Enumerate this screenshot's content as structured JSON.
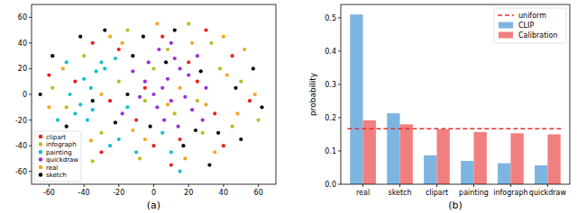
{
  "chart_data": [
    {
      "type": "scatter",
      "title": "(a)",
      "xlim": [
        -70,
        70
      ],
      "ylim": [
        -70,
        70
      ],
      "xticks": [
        -60,
        -40,
        -20,
        0,
        20,
        40,
        60
      ],
      "yticks": [
        -60,
        -40,
        -20,
        0,
        20,
        40,
        60
      ],
      "legend": "lower left",
      "marker": "circle",
      "series": [
        {
          "name": "clipart",
          "color": "#e8231f",
          "x": [
            -55,
            -45,
            -30,
            -20,
            -10,
            5,
            15,
            25,
            35,
            45,
            55,
            -35,
            -5,
            10,
            30,
            -60,
            40,
            20,
            -25,
            0
          ],
          "values": [
            -30,
            10,
            -45,
            35,
            -20,
            45,
            -35,
            10,
            -15,
            30,
            -5,
            40,
            5,
            -55,
            50,
            15,
            -40,
            25,
            -5,
            -40
          ]
        },
        {
          "name": "infograph",
          "color": "#bcbd22",
          "x": [
            -50,
            -40,
            -15,
            0,
            12,
            28,
            38,
            50,
            -30,
            -8,
            20,
            60,
            -20,
            8,
            45,
            -35,
            25,
            -5,
            33,
            -58
          ],
          "values": [
            -10,
            30,
            50,
            20,
            -15,
            -30,
            20,
            10,
            -30,
            -50,
            55,
            -20,
            10,
            35,
            -25,
            -52,
            -5,
            -5,
            40,
            5
          ]
        },
        {
          "name": "painting",
          "color": "#17becf",
          "x": [
            -45,
            -42,
            -38,
            -35,
            -30,
            -28,
            -33,
            -25,
            -20,
            -50,
            -15,
            -10,
            10,
            5,
            -48,
            -36,
            -22,
            -40,
            15,
            -55
          ],
          "values": [
            -15,
            -8,
            -20,
            -12,
            25,
            20,
            18,
            -40,
            -35,
            25,
            -10,
            -45,
            -45,
            -30,
            0,
            5,
            28,
            12,
            -60,
            -20
          ]
        },
        {
          "name": "quickdraw",
          "color": "#9b30d9",
          "x": [
            0,
            5,
            10,
            -5,
            8,
            15,
            20,
            12,
            -3,
            2,
            18,
            25,
            -8,
            6,
            22,
            30,
            -12,
            3,
            14,
            -18,
            28,
            10
          ],
          "values": [
            0,
            5,
            -5,
            10,
            12,
            20,
            15,
            28,
            25,
            -10,
            -2,
            30,
            -2,
            -20,
            -12,
            5,
            18,
            35,
            -25,
            -15,
            -20,
            40
          ]
        },
        {
          "name": "real",
          "color": "#f5a623",
          "x": [
            -52,
            -36,
            -25,
            -12,
            2,
            18,
            30,
            42,
            52,
            58,
            -30,
            -18,
            8,
            22,
            35,
            48,
            -60,
            -5,
            15,
            40
          ],
          "values": [
            20,
            -36,
            45,
            -28,
            55,
            -50,
            -8,
            15,
            35,
            0,
            0,
            40,
            -8,
            40,
            -45,
            -15,
            -10,
            -35,
            5,
            45
          ]
        },
        {
          "name": "sketch",
          "color": "#000000",
          "x": [
            -58,
            -50,
            -35,
            -22,
            -12,
            -2,
            7,
            17,
            27,
            37,
            47,
            57,
            -42,
            -28,
            12,
            32,
            50,
            -15,
            24,
            -6,
            62,
            -65
          ],
          "values": [
            30,
            -25,
            -5,
            -22,
            30,
            -25,
            25,
            -40,
            18,
            -30,
            5,
            20,
            45,
            50,
            50,
            -55,
            -35,
            0,
            -28,
            45,
            -10,
            0
          ]
        }
      ]
    },
    {
      "type": "bar",
      "title": "(b)",
      "ylabel": "probability",
      "categories": [
        "real",
        "sketch",
        "clipart",
        "painting",
        "infograph",
        "quickdraw"
      ],
      "ylim": [
        0,
        0.54
      ],
      "yticks": [
        {
          "value": 0,
          "label": "0.0"
        },
        {
          "value": 0.1,
          "label": "0.1"
        },
        {
          "value": 0.2,
          "label": "0.2"
        },
        {
          "value": 0.3,
          "label": "0.3"
        },
        {
          "value": 0.4,
          "label": "0.4"
        },
        {
          "value": 0.5,
          "label": "0.5"
        }
      ],
      "legend": "upper right",
      "series": [
        {
          "name": "uniform",
          "type": "line",
          "line_style": "dashed",
          "color": "#e0302b",
          "values": [
            0.1667,
            0.1667,
            0.1667,
            0.1667,
            0.1667,
            0.1667
          ]
        },
        {
          "name": "CLIP",
          "type": "bar",
          "color": "#7db5e1",
          "values": [
            0.51,
            0.213,
            0.087,
            0.07,
            0.063,
            0.057
          ]
        },
        {
          "name": "Calibration",
          "type": "bar",
          "color": "#f27f7f",
          "values": [
            0.192,
            0.18,
            0.165,
            0.157,
            0.153,
            0.15
          ]
        }
      ]
    }
  ]
}
